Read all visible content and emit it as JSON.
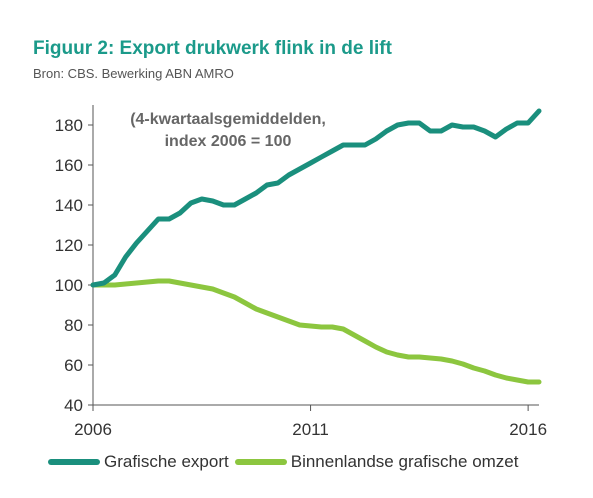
{
  "header": {
    "title": "Figuur 2: Export drukwerk flink in de lift",
    "source": "Bron: CBS. Bewerking ABN AMRO"
  },
  "colors": {
    "title": "#1b9a8a",
    "export": "#1a8f7d",
    "binnenlands": "#8cc63f"
  },
  "chart_data": {
    "type": "line",
    "title": "Figuur 2: Export drukwerk flink in de lift",
    "subtitle": "Bron: CBS. Bewerking ABN AMRO",
    "annotation": [
      "(4-kwartaalsgemiddelden,",
      "index 2006 = 100"
    ],
    "xlabel": "",
    "ylabel": "",
    "xlim": [
      2006,
      2016.25
    ],
    "ylim": [
      40,
      190
    ],
    "yticks": [
      40,
      60,
      80,
      100,
      120,
      140,
      160,
      180
    ],
    "xticks": [
      2006,
      2011,
      2016
    ],
    "legend_position": "bottom",
    "grid": false,
    "series": [
      {
        "name": "Grafische export",
        "color": "#1a8f7d",
        "x": [
          2006.0,
          2006.25,
          2006.5,
          2006.75,
          2007.0,
          2007.25,
          2007.5,
          2007.75,
          2008.0,
          2008.25,
          2008.5,
          2008.75,
          2009.0,
          2009.25,
          2009.5,
          2009.75,
          2010.0,
          2010.25,
          2010.5,
          2010.75,
          2011.0,
          2011.25,
          2011.5,
          2011.75,
          2012.0,
          2012.25,
          2012.5,
          2012.75,
          2013.0,
          2013.25,
          2013.5,
          2013.75,
          2014.0,
          2014.25,
          2014.5,
          2014.75,
          2015.0,
          2015.25,
          2015.5,
          2015.75,
          2016.0,
          2016.25
        ],
        "values": [
          100,
          101,
          105,
          114,
          121,
          127,
          133,
          133,
          136,
          141,
          143,
          142,
          140,
          140,
          143,
          146,
          150,
          151,
          155,
          158,
          161,
          164,
          167,
          170,
          170,
          170,
          173,
          177,
          180,
          181,
          181,
          177,
          177,
          180,
          179,
          179,
          177,
          174,
          178,
          181,
          181,
          187
        ]
      },
      {
        "name": "Binnenlandse grafische omzet",
        "color": "#8cc63f",
        "x": [
          2006.0,
          2006.25,
          2006.5,
          2006.75,
          2007.0,
          2007.25,
          2007.5,
          2007.75,
          2008.0,
          2008.25,
          2008.5,
          2008.75,
          2009.0,
          2009.25,
          2009.5,
          2009.75,
          2010.0,
          2010.25,
          2010.5,
          2010.75,
          2011.0,
          2011.25,
          2011.5,
          2011.75,
          2012.0,
          2012.25,
          2012.5,
          2012.75,
          2013.0,
          2013.25,
          2013.5,
          2013.75,
          2014.0,
          2014.25,
          2014.5,
          2014.75,
          2015.0,
          2015.25,
          2015.5,
          2015.75,
          2016.0,
          2016.25
        ],
        "values": [
          100,
          100,
          100,
          100.5,
          101,
          101.5,
          102,
          102,
          101,
          100,
          99,
          98,
          96,
          94,
          91,
          88,
          86,
          84,
          82,
          80,
          79.5,
          79,
          79,
          78,
          75,
          72,
          69,
          66.5,
          65,
          64,
          64,
          63.5,
          63,
          62,
          60.5,
          58.5,
          57,
          55,
          53.5,
          52.5,
          51.5,
          51.5
        ]
      }
    ]
  }
}
